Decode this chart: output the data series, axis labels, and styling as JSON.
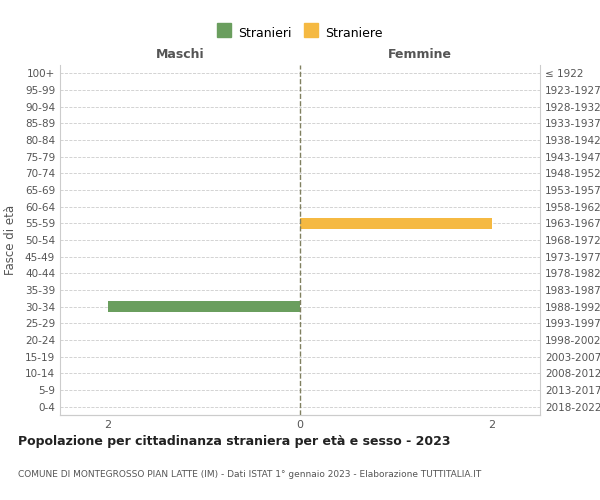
{
  "age_groups": [
    "100+",
    "95-99",
    "90-94",
    "85-89",
    "80-84",
    "75-79",
    "70-74",
    "65-69",
    "60-64",
    "55-59",
    "50-54",
    "45-49",
    "40-44",
    "35-39",
    "30-34",
    "25-29",
    "20-24",
    "15-19",
    "10-14",
    "5-9",
    "0-4"
  ],
  "birth_years": [
    "≤ 1922",
    "1923-1927",
    "1928-1932",
    "1933-1937",
    "1938-1942",
    "1943-1947",
    "1948-1952",
    "1953-1957",
    "1958-1962",
    "1963-1967",
    "1968-1972",
    "1973-1977",
    "1978-1982",
    "1983-1987",
    "1988-1992",
    "1993-1997",
    "1998-2002",
    "2003-2007",
    "2008-2012",
    "2013-2017",
    "2018-2022"
  ],
  "maschi_values": [
    0,
    0,
    0,
    0,
    0,
    0,
    0,
    0,
    0,
    0,
    0,
    0,
    0,
    0,
    2,
    0,
    0,
    0,
    0,
    0,
    0
  ],
  "femmine_values": [
    0,
    0,
    0,
    0,
    0,
    0,
    0,
    0,
    0,
    2,
    0,
    0,
    0,
    0,
    0,
    0,
    0,
    0,
    0,
    0,
    0
  ],
  "maschi_color": "#6a9e5e",
  "femmine_color": "#f5b942",
  "legend_maschi": "Stranieri",
  "legend_femmine": "Straniere",
  "title": "Popolazione per cittadinanza straniera per età e sesso - 2023",
  "subtitle": "COMUNE DI MONTEGROSSO PIAN LATTE (IM) - Dati ISTAT 1° gennaio 2023 - Elaborazione TUTTITALIA.IT",
  "xlabel_left": "Maschi",
  "xlabel_right": "Femmine",
  "ylabel_left": "Fasce di età",
  "xlim": 2.5,
  "background_color": "#ffffff",
  "grid_color": "#cccccc",
  "dashed_center_color": "#808060",
  "legend_marker_color_maschi": "#6a9e5e",
  "legend_marker_color_femmine": "#f5b942",
  "axis_label_color": "#555555",
  "tick_color": "#555555"
}
